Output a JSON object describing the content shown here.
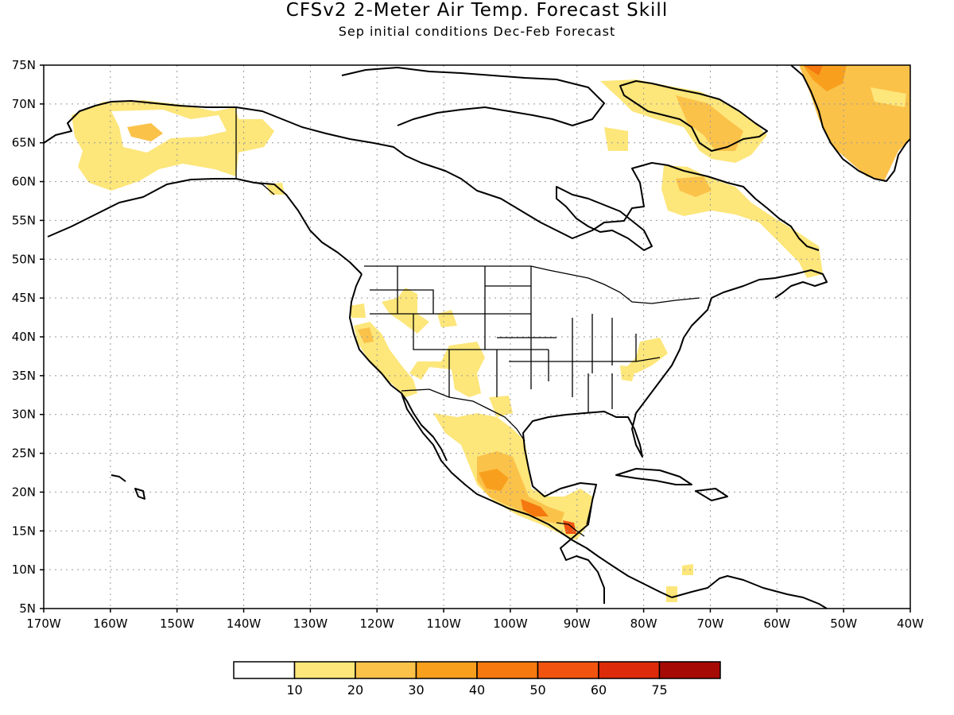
{
  "title": "CFSv2 2-Meter Air Temp. Forecast Skill",
  "subtitle": "Sep initial conditions  Dec-Feb Forecast",
  "map": {
    "lat_labels": [
      "75N",
      "70N",
      "65N",
      "60N",
      "55N",
      "50N",
      "45N",
      "40N",
      "35N",
      "30N",
      "25N",
      "20N",
      "15N",
      "10N",
      "5N"
    ],
    "lon_labels": [
      "170W",
      "160W",
      "150W",
      "140W",
      "130W",
      "120W",
      "110W",
      "100W",
      "90W",
      "80W",
      "70W",
      "60W",
      "50W",
      "40W"
    ],
    "grid": true
  },
  "colorbar": {
    "labels": [
      "10",
      "20",
      "30",
      "40",
      "50",
      "60",
      "75"
    ],
    "colors": [
      "#ffffff",
      "#fde67a",
      "#fbc24a",
      "#f8a01e",
      "#f5790f",
      "#f25410",
      "#dd2a0a",
      "#a60a05"
    ]
  },
  "colors": {
    "level1": "#fde67a",
    "level2": "#fbc24a",
    "level3": "#f8a01e",
    "level4": "#f5790f",
    "level5": "#f25410"
  }
}
